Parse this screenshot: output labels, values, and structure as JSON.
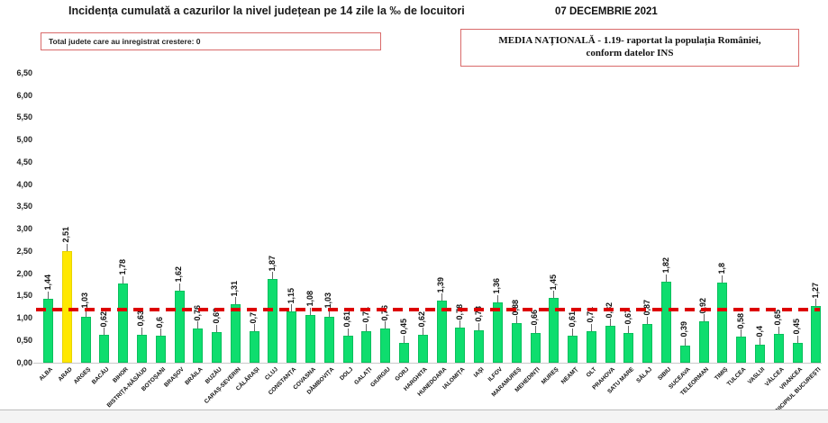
{
  "header": {
    "title": "Incidența cumulată a cazurilor la nivel județean pe 14 zile la ‰ de locuitori",
    "date": "07 DECEMBRIE 2021"
  },
  "growth_box": {
    "label": "Total judete care au inregistrat crestere: 0"
  },
  "national_box": {
    "line1": "MEDIA NAȚIONALĂ - 1.19-  raportat la populația României,",
    "line2": "conform datelor INS"
  },
  "chart_data": {
    "type": "bar",
    "title": "Incidența cumulată a cazurilor la nivel județean pe 14 zile la ‰ de locuitori",
    "xlabel": "",
    "ylabel": "",
    "ylim": [
      0,
      6.5
    ],
    "ytick_step": 0.5,
    "grid": false,
    "legend": false,
    "categories": [
      "ALBA",
      "ARAD",
      "ARGEȘ",
      "BACĂU",
      "BIHOR",
      "BISTRIȚA-NĂSĂUD",
      "BOTOȘANI",
      "BRAȘOV",
      "BRĂILA",
      "BUZĂU",
      "CARAȘ-SEVERIN",
      "CĂLĂRAȘI",
      "CLUJ",
      "CONSTANȚA",
      "COVASNA",
      "DÂMBOVIȚA",
      "DOLJ",
      "GALAȚI",
      "GIURGIU",
      "GORJ",
      "HARGHITA",
      "HUNEDOARA",
      "IALOMIȚA",
      "IAȘI",
      "ILFOV",
      "MARAMUREȘ",
      "MEHEDINȚI",
      "MUREȘ",
      "NEAMȚ",
      "OLT",
      "PRAHOVA",
      "SATU MARE",
      "SĂLAJ",
      "SIBIU",
      "SUCEAVA",
      "TELEORMAN",
      "TIMIȘ",
      "TULCEA",
      "VASLUI",
      "VÂLCEA",
      "VRANCEA",
      "MUNICIPIUL BUCUREȘTI"
    ],
    "values": [
      1.44,
      2.51,
      1.03,
      0.62,
      1.78,
      0.63,
      0.6,
      1.62,
      0.76,
      0.69,
      1.31,
      0.7,
      1.87,
      1.15,
      1.08,
      1.03,
      0.61,
      0.71,
      0.76,
      0.45,
      0.62,
      1.39,
      0.78,
      0.73,
      1.36,
      0.88,
      0.66,
      1.45,
      0.61,
      0.71,
      0.82,
      0.67,
      0.87,
      1.82,
      0.39,
      0.92,
      1.8,
      0.58,
      0.4,
      0.65,
      0.45,
      1.27
    ],
    "value_labels": [
      "1,44",
      "2,51",
      "1,03",
      "0,62",
      "1,78",
      "0,63",
      "0,6",
      "1,62",
      "0,76",
      "0,69",
      "1,31",
      "0,7",
      "1,87",
      "1,15",
      "1,08",
      "1,03",
      "0,61",
      "0,71",
      "0,76",
      "0,45",
      "0,62",
      "1,39",
      "0,78",
      "0,73",
      "1,36",
      "0,88",
      "0,66",
      "1,45",
      "0,61",
      "0,71",
      "0,82",
      "0,67",
      "0,87",
      "1,82",
      "0,39",
      "0,92",
      "1,8",
      "0,58",
      "0,4",
      "0,65",
      "0,45",
      "1,27"
    ],
    "highlight_category": "ARAD",
    "colors": {
      "bar": "#0edd6e",
      "bar_border": "#0abf5d",
      "highlight": "#ffe800",
      "highlight_border": "#e8d400",
      "average_line": "#dd0000"
    },
    "national_average": 1.19
  }
}
